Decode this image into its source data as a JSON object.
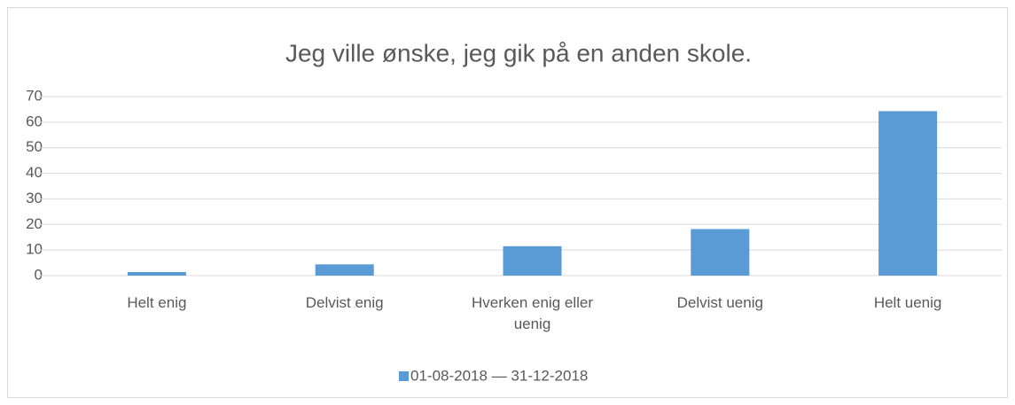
{
  "chart_data": {
    "type": "bar",
    "title": "Jeg ville ønske, jeg gik på en anden skole.",
    "categories": [
      "Helt enig",
      "Delvist enig",
      "Hverken enig eller uenig",
      "Delvist uenig",
      "Helt uenig"
    ],
    "series": [
      {
        "name": "01-08-2018 — 31-12-2018",
        "color": "#5b9bd5",
        "values": [
          1.4,
          4.4,
          11.5,
          18.2,
          64.3
        ]
      }
    ],
    "ylim": [
      0,
      70
    ],
    "yticks": [
      0,
      10,
      20,
      30,
      40,
      50,
      60,
      70
    ],
    "grid": true,
    "legend": "bottom"
  }
}
